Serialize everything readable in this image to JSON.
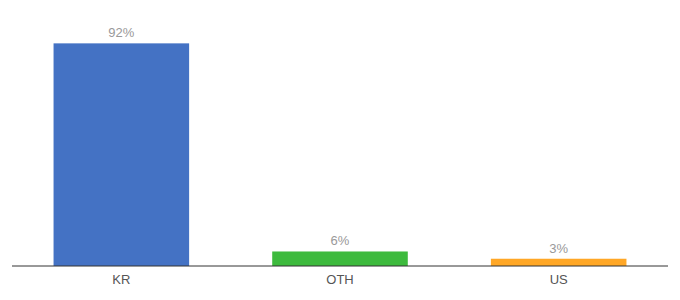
{
  "chart_data": {
    "type": "bar",
    "categories": [
      "KR",
      "OTH",
      "US"
    ],
    "values": [
      92,
      6,
      3
    ],
    "value_labels": [
      "92%",
      "6%",
      "3%"
    ],
    "colors": [
      "#4472c4",
      "#3dba3d",
      "#ffa726"
    ],
    "ylim": [
      0,
      100
    ],
    "data_labels": true,
    "tick_labels": "x",
    "grid": false
  }
}
